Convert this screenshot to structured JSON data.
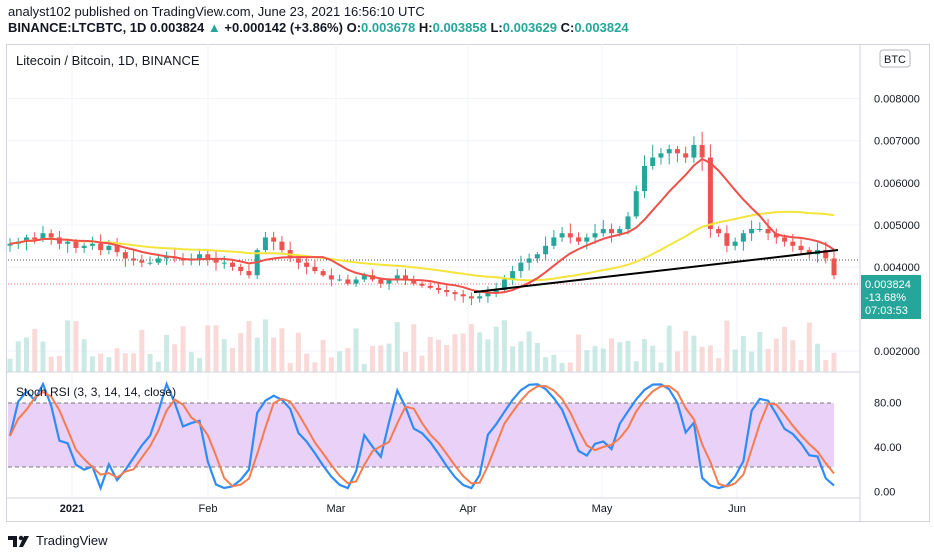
{
  "header": {
    "publish_line": "analyst102 published on TradingView.com, June 23, 2021 16:56:10 UTC",
    "symbol": "BINANCE:LTCBTC, 1D",
    "last": "0.003824",
    "change_arrow": "▲",
    "change": "+0.000142 (+3.86%)",
    "o_label": "O:",
    "o_value": "0.003678",
    "h_label": "H:",
    "h_value": "0.003858",
    "l_label": "L:",
    "l_value": "0.003629",
    "c_label": "C:",
    "c_value": "0.003824"
  },
  "pane_title": "Litecoin / Bitcoin, 1D, BINANCE",
  "currency_badge": "BTC",
  "price_tag": {
    "price": "0.003824",
    "change": "-13.68%",
    "countdown": "07:03:53"
  },
  "rsi_title": "Stoch RSI (3, 3, 14, 14, close)",
  "brand": "TradingView",
  "colors": {
    "up": "#26a69a",
    "down": "#ef5350",
    "ma_fast": "#f0504a",
    "ma_slow": "#f5e43c",
    "trendline": "#000000",
    "k_line": "#2f8cf5",
    "d_line": "#f57c50",
    "rsi_band": "#e9d1f7"
  },
  "chart_data": [
    {
      "type": "candlestick",
      "title": "Litecoin / Bitcoin, 1D, BINANCE",
      "x_ticks": [
        "2021",
        "Feb",
        "Mar",
        "Apr",
        "May",
        "Jun"
      ],
      "y_ticks": [
        0.008,
        0.007,
        0.006,
        0.005,
        0.004,
        0.002
      ],
      "ylim": [
        0.0015,
        0.0093
      ],
      "close_series": [
        0.00455,
        0.0046,
        0.0047,
        0.00465,
        0.0048,
        0.0047,
        0.00455,
        0.0046,
        0.00445,
        0.0045,
        0.00455,
        0.0044,
        0.0045,
        0.00435,
        0.0042,
        0.00415,
        0.0041,
        0.0041,
        0.0042,
        0.00425,
        0.0042,
        0.00415,
        0.0042,
        0.0043,
        0.0042,
        0.0041,
        0.0041,
        0.004,
        0.0039,
        0.0038,
        0.0044,
        0.0047,
        0.0046,
        0.0044,
        0.0042,
        0.0041,
        0.004,
        0.0039,
        0.0038,
        0.0037,
        0.0037,
        0.0036,
        0.0037,
        0.0038,
        0.0037,
        0.0036,
        0.0037,
        0.0038,
        0.0037,
        0.0036,
        0.00355,
        0.0035,
        0.00345,
        0.0034,
        0.00335,
        0.0033,
        0.00325,
        0.0033,
        0.0034,
        0.00345,
        0.0037,
        0.0039,
        0.0041,
        0.0042,
        0.0043,
        0.0045,
        0.0047,
        0.0048,
        0.0047,
        0.0046,
        0.0047,
        0.0048,
        0.0049,
        0.0048,
        0.0049,
        0.0052,
        0.0058,
        0.0064,
        0.0066,
        0.0067,
        0.0068,
        0.0067,
        0.0066,
        0.0069,
        0.0066,
        0.0049,
        0.0048,
        0.0045,
        0.0046,
        0.0048,
        0.0049,
        0.0049,
        0.0048,
        0.0047,
        0.0046,
        0.0045,
        0.0044,
        0.0043,
        0.0044,
        0.0042,
        0.0038
      ],
      "trendline": {
        "from": [
          "Apr",
          0.0034
        ],
        "to": [
          "Jun",
          0.0044
        ]
      },
      "volume": true
    },
    {
      "type": "line",
      "title": "Stoch RSI (3, 3, 14, 14, close)",
      "y_ticks": [
        80.0,
        40.0,
        0.0
      ],
      "ylim": [
        -5,
        105
      ],
      "band": [
        20,
        80
      ],
      "series": []
    }
  ]
}
